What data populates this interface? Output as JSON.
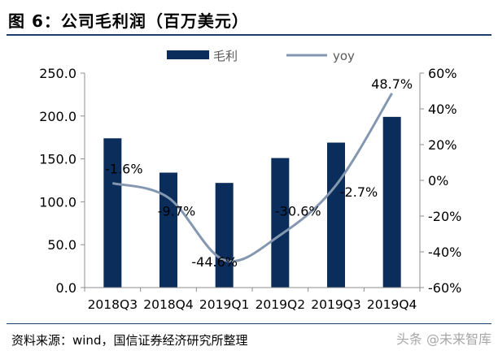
{
  "header": {
    "title": "图 6：公司毛利润（百万美元）"
  },
  "footer": {
    "source": "资料来源：wind，国信证券经济研究所整理",
    "watermark": "头条 @未来智库"
  },
  "colors": {
    "bar": "#0b2d5b",
    "line": "#8497b0",
    "axis": "#8c8c8c",
    "text": "#000000"
  },
  "chart_data": {
    "type": "bar",
    "categories": [
      "2018Q3",
      "2018Q4",
      "2019Q1",
      "2019Q2",
      "2019Q3",
      "2019Q4"
    ],
    "series": [
      {
        "name": "毛利",
        "type": "bar",
        "axis": "left",
        "values": [
          174,
          134,
          122,
          151,
          169,
          199
        ]
      },
      {
        "name": "yoy",
        "type": "line",
        "axis": "right",
        "values": [
          -1.6,
          -9.7,
          -44.6,
          -30.6,
          -2.7,
          48.7
        ]
      }
    ],
    "y_left": {
      "min": 0,
      "max": 250,
      "ticks": [
        "0.0",
        "50.0",
        "100.0",
        "150.0",
        "200.0",
        "250.0"
      ]
    },
    "y_right": {
      "min": -60,
      "max": 60,
      "ticks": [
        "-60%",
        "-40%",
        "-20%",
        "0%",
        "20%",
        "40%",
        "60%"
      ]
    },
    "data_labels": [
      "-1.6%",
      "-9.7%",
      "-44.6%",
      "-30.6%",
      "-2.7%",
      "48.7%"
    ],
    "legend": {
      "position": "top",
      "items": [
        "毛利",
        "yoy"
      ]
    },
    "grid": false
  }
}
